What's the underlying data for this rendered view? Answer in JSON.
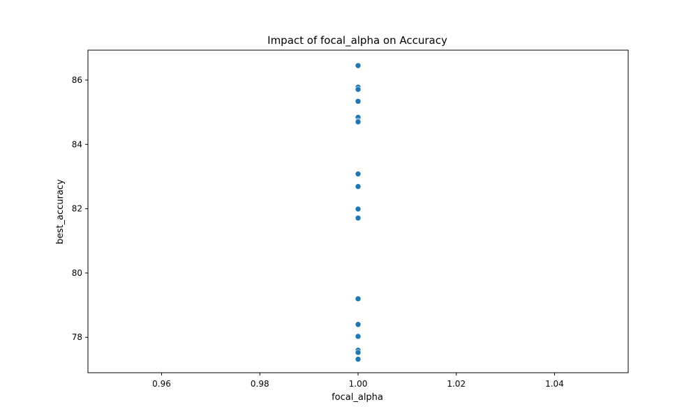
{
  "chart_data": {
    "type": "scatter",
    "title": "Impact of focal_alpha on Accuracy",
    "xlabel": "focal_alpha",
    "ylabel": "best_accuracy",
    "xlim": [
      0.945,
      1.055
    ],
    "ylim": [
      76.9,
      86.93
    ],
    "x_ticks": [
      0.96,
      0.98,
      1.0,
      1.02,
      1.04
    ],
    "x_tick_labels": [
      "0.96",
      "0.98",
      "1.00",
      "1.02",
      "1.04"
    ],
    "y_ticks": [
      78,
      80,
      82,
      84,
      86
    ],
    "y_tick_labels": [
      "78",
      "80",
      "82",
      "84",
      "86"
    ],
    "grid": false,
    "marker_color": "#1f77b4",
    "points": [
      {
        "x": 1.0,
        "y": 86.45
      },
      {
        "x": 1.0,
        "y": 85.78
      },
      {
        "x": 1.0,
        "y": 85.71
      },
      {
        "x": 1.0,
        "y": 85.34
      },
      {
        "x": 1.0,
        "y": 84.84
      },
      {
        "x": 1.0,
        "y": 84.73
      },
      {
        "x": 1.0,
        "y": 84.7
      },
      {
        "x": 1.0,
        "y": 83.08
      },
      {
        "x": 1.0,
        "y": 82.69
      },
      {
        "x": 1.0,
        "y": 81.99
      },
      {
        "x": 1.0,
        "y": 81.71
      },
      {
        "x": 1.0,
        "y": 79.2
      },
      {
        "x": 1.0,
        "y": 78.4
      },
      {
        "x": 1.0,
        "y": 78.03
      },
      {
        "x": 1.0,
        "y": 77.6
      },
      {
        "x": 1.0,
        "y": 77.53
      },
      {
        "x": 1.0,
        "y": 77.32
      }
    ]
  }
}
